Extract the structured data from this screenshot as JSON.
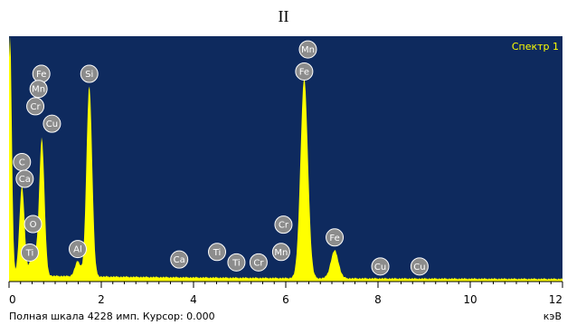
{
  "chart_data": {
    "type": "area",
    "title": "II",
    "legend": "Спектр 1",
    "xlabel_unit": "кэВ",
    "xlim": [
      0,
      12
    ],
    "x_ticks": [
      "0",
      "2",
      "4",
      "6",
      "8",
      "10",
      "12"
    ],
    "footer": {
      "full_scale": "Полная шкала 4228 имп. Курсор: 0.000"
    },
    "colors": {
      "plot_background": "#0e2a5e",
      "spectrum": "#ffff00",
      "marker_fill": "#8c8c8c",
      "marker_stroke": "#ffffff"
    },
    "peaks": [
      {
        "x": 0.02,
        "y": 4228
      },
      {
        "x": 0.28,
        "y": 1550
      },
      {
        "x": 0.52,
        "y": 520
      },
      {
        "x": 0.71,
        "y": 2380
      },
      {
        "x": 1.74,
        "y": 3300
      },
      {
        "x": 1.49,
        "y": 260
      },
      {
        "x": 6.4,
        "y": 3450
      },
      {
        "x": 7.06,
        "y": 480
      }
    ],
    "element_markers": [
      {
        "label": "Fe",
        "x": 0.7,
        "y": 3580
      },
      {
        "label": "Mn",
        "x": 0.64,
        "y": 3320
      },
      {
        "label": "Cr",
        "x": 0.57,
        "y": 3020
      },
      {
        "label": "Cu",
        "x": 0.93,
        "y": 2720
      },
      {
        "label": "C",
        "x": 0.28,
        "y": 2060
      },
      {
        "label": "Ca",
        "x": 0.34,
        "y": 1770
      },
      {
        "label": "O",
        "x": 0.52,
        "y": 990
      },
      {
        "label": "Ti",
        "x": 0.45,
        "y": 500
      },
      {
        "label": "Si",
        "x": 1.74,
        "y": 3580
      },
      {
        "label": "Al",
        "x": 1.49,
        "y": 560
      },
      {
        "label": "Ca",
        "x": 3.69,
        "y": 380
      },
      {
        "label": "Ti",
        "x": 4.51,
        "y": 510
      },
      {
        "label": "Ti",
        "x": 4.93,
        "y": 330
      },
      {
        "label": "Cr",
        "x": 5.41,
        "y": 330
      },
      {
        "label": "Mn",
        "x": 5.9,
        "y": 510
      },
      {
        "label": "Cr",
        "x": 5.95,
        "y": 980
      },
      {
        "label": "Mn",
        "x": 6.48,
        "y": 4000
      },
      {
        "label": "Fe",
        "x": 6.4,
        "y": 3620
      },
      {
        "label": "Fe",
        "x": 7.06,
        "y": 760
      },
      {
        "label": "Cu",
        "x": 8.05,
        "y": 260
      },
      {
        "label": "Cu",
        "x": 8.9,
        "y": 260
      }
    ]
  }
}
